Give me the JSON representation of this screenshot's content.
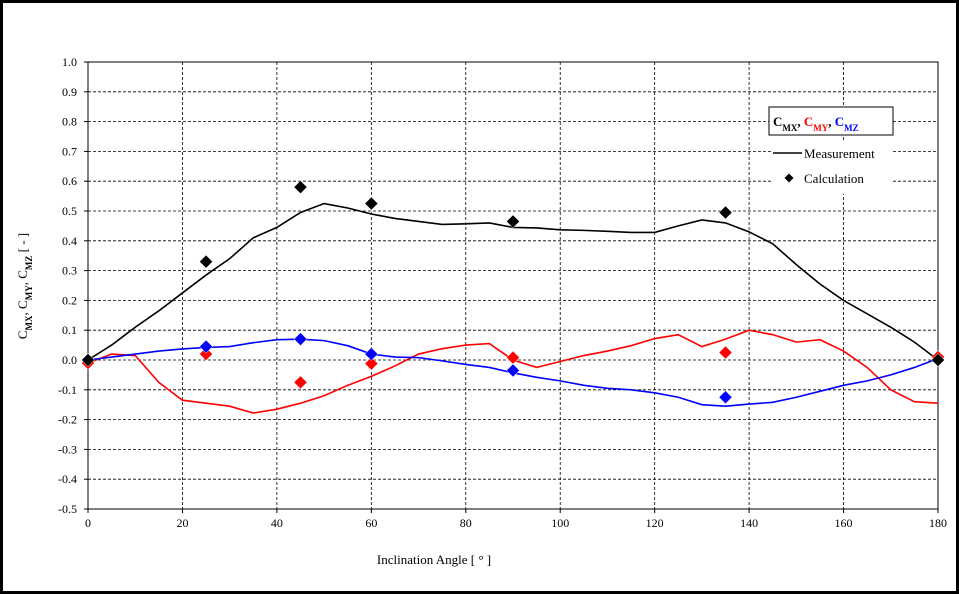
{
  "chart_data": {
    "type": "line",
    "xlabel": "Inclination  Angle  [ ° ]",
    "ylabel_parts": [
      {
        "t": "C",
        "sub": "MX"
      },
      {
        "t": ", C",
        "sub": "MY"
      },
      {
        "t": ", C",
        "sub": "MZ"
      },
      {
        "t": " [ - ]",
        "sub": ""
      }
    ],
    "xlim": [
      0,
      180
    ],
    "ylim": [
      -0.5,
      1.0
    ],
    "xticks": [
      0,
      20,
      40,
      60,
      80,
      100,
      120,
      140,
      160,
      180
    ],
    "yticks": [
      -0.5,
      -0.4,
      -0.3,
      -0.2,
      -0.1,
      0.0,
      0.1,
      0.2,
      0.3,
      0.4,
      0.5,
      0.6,
      0.7,
      0.8,
      0.9,
      1.0
    ],
    "ytick_labels": [
      "-0.5",
      "-0.4",
      "-0.3",
      "-0.2",
      "-0.1",
      "0.0",
      "0.1",
      "0.2",
      "0.3",
      "0.4",
      "0.5",
      "0.6",
      "0.7",
      "0.8",
      "0.9",
      "1.0"
    ],
    "grid": true,
    "legend": {
      "placement": "top-right",
      "header": [
        {
          "t": "C",
          "sub": "MX",
          "color": "#000000"
        },
        {
          "t": ", ",
          "sub": "",
          "color": "#000000"
        },
        {
          "t": "C",
          "sub": "MY",
          "color": "#ff0000"
        },
        {
          "t": ", ",
          "sub": "",
          "color": "#000000"
        },
        {
          "t": "C",
          "sub": "MZ",
          "color": "#0000ff"
        }
      ],
      "measurement_label": "Measurement",
      "calculation_label": "Calculation"
    },
    "series": [
      {
        "color": "#000000",
        "measurement": {
          "x": [
            0,
            5,
            10,
            15,
            20,
            25,
            30,
            35,
            40,
            45,
            50,
            55,
            60,
            65,
            70,
            75,
            80,
            85,
            90,
            95,
            100,
            105,
            110,
            115,
            120,
            125,
            130,
            135,
            140,
            145,
            150,
            155,
            160,
            165,
            170,
            175,
            180
          ],
          "y": [
            0.0,
            0.05,
            0.11,
            0.165,
            0.225,
            0.285,
            0.34,
            0.41,
            0.445,
            0.495,
            0.525,
            0.51,
            0.49,
            0.475,
            0.465,
            0.455,
            0.457,
            0.46,
            0.445,
            0.443,
            0.437,
            0.435,
            0.432,
            0.428,
            0.428,
            0.45,
            0.47,
            0.46,
            0.43,
            0.39,
            0.32,
            0.255,
            0.2,
            0.155,
            0.11,
            0.06,
            0.0
          ]
        },
        "calculation": {
          "x": [
            0,
            25,
            45,
            60,
            90,
            135,
            180
          ],
          "y": [
            0.0,
            0.33,
            0.58,
            0.525,
            0.465,
            0.495,
            0.0
          ]
        }
      },
      {
        "color": "#ff0000",
        "measurement": {
          "x": [
            0,
            5,
            10,
            15,
            20,
            25,
            30,
            35,
            40,
            45,
            50,
            55,
            60,
            65,
            70,
            75,
            80,
            85,
            90,
            95,
            100,
            105,
            110,
            115,
            120,
            125,
            130,
            135,
            140,
            145,
            150,
            155,
            160,
            165,
            170,
            175,
            180
          ],
          "y": [
            -0.01,
            0.02,
            0.015,
            -0.075,
            -0.135,
            -0.145,
            -0.155,
            -0.178,
            -0.165,
            -0.145,
            -0.12,
            -0.085,
            -0.055,
            -0.02,
            0.02,
            0.038,
            0.05,
            0.055,
            0.0,
            -0.025,
            -0.005,
            0.015,
            0.03,
            0.048,
            0.072,
            0.085,
            0.045,
            0.07,
            0.1,
            0.085,
            0.06,
            0.068,
            0.03,
            -0.025,
            -0.1,
            -0.14,
            -0.145
          ]
        },
        "calculation": {
          "x": [
            0,
            25,
            45,
            60,
            90,
            135,
            180
          ],
          "y": [
            -0.01,
            0.02,
            -0.075,
            -0.012,
            0.008,
            0.025,
            0.01
          ]
        }
      },
      {
        "color": "#0000ff",
        "measurement": {
          "x": [
            0,
            5,
            10,
            15,
            20,
            25,
            30,
            35,
            40,
            45,
            50,
            55,
            60,
            65,
            70,
            75,
            80,
            85,
            90,
            95,
            100,
            105,
            110,
            115,
            120,
            125,
            130,
            135,
            140,
            145,
            150,
            155,
            160,
            165,
            170,
            175,
            180
          ],
          "y": [
            0.0,
            0.01,
            0.02,
            0.03,
            0.037,
            0.042,
            0.045,
            0.058,
            0.068,
            0.07,
            0.065,
            0.048,
            0.02,
            0.01,
            0.008,
            -0.003,
            -0.015,
            -0.025,
            -0.043,
            -0.058,
            -0.07,
            -0.085,
            -0.095,
            -0.1,
            -0.11,
            -0.125,
            -0.15,
            -0.155,
            -0.148,
            -0.142,
            -0.125,
            -0.105,
            -0.085,
            -0.07,
            -0.05,
            -0.025,
            0.005
          ]
        },
        "calculation": {
          "x": [
            0,
            25,
            45,
            60,
            90,
            135,
            180
          ],
          "y": [
            0.0,
            0.045,
            0.07,
            0.02,
            -0.035,
            -0.125,
            0.0
          ]
        }
      }
    ]
  }
}
